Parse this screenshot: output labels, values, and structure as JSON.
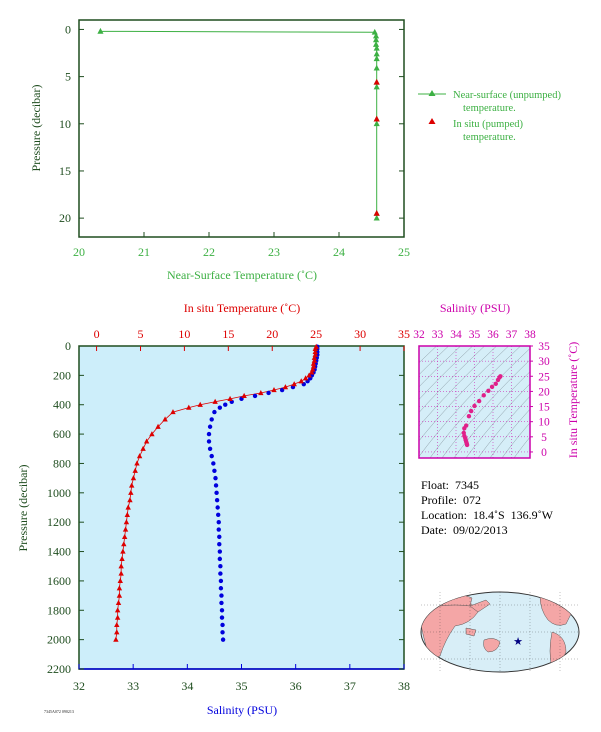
{
  "chart_data": [
    {
      "type": "scatter",
      "id": "near-surface",
      "xlabel": "Near-Surface Temperature (˚C)",
      "ylabel": "Pressure (decibar)",
      "xlim": [
        20,
        25
      ],
      "ylim": [
        22,
        -1
      ],
      "x_ticks": [
        "20",
        "21",
        "22",
        "23",
        "24",
        "25"
      ],
      "y_ticks": [
        "0",
        "5",
        "10",
        "15",
        "20"
      ],
      "legend_position": "right",
      "series": [
        {
          "name": "Near-surface (unpumped) temperature.",
          "color": "#3cb043",
          "marker": "triangle",
          "line": true,
          "points": [
            [
              20.33,
              0.2
            ],
            [
              24.55,
              0.3
            ],
            [
              24.57,
              0.7
            ],
            [
              24.57,
              1.1
            ],
            [
              24.57,
              1.6
            ],
            [
              24.58,
              2.0
            ],
            [
              24.58,
              2.6
            ],
            [
              24.58,
              3.1
            ],
            [
              24.58,
              4.1
            ],
            [
              24.58,
              5.6
            ],
            [
              24.58,
              6.1
            ],
            [
              24.58,
              9.5
            ],
            [
              24.58,
              10.0
            ],
            [
              24.58,
              19.5
            ],
            [
              24.58,
              20.0
            ]
          ]
        },
        {
          "name": "In situ (pumped) temperature.",
          "color": "#dd0000",
          "marker": "triangle",
          "line": false,
          "points": [
            [
              24.58,
              5.6
            ],
            [
              24.58,
              9.5
            ],
            [
              24.58,
              19.5
            ]
          ]
        }
      ]
    },
    {
      "type": "line",
      "id": "profile",
      "title_top": "In situ Temperature (˚C)",
      "xlabel": "Salinity (PSU)",
      "ylabel": "Pressure (decibar)",
      "temp_lim": [
        -2,
        35
      ],
      "sal_lim": [
        32,
        38
      ],
      "ylim": [
        2200,
        0
      ],
      "temp_ticks": [
        "0",
        "5",
        "10",
        "15",
        "20",
        "25",
        "30",
        "35"
      ],
      "sal_ticks": [
        "32",
        "33",
        "34",
        "35",
        "36",
        "37",
        "38"
      ],
      "y_ticks": [
        "0",
        "200",
        "400",
        "600",
        "800",
        "1000",
        "1200",
        "1400",
        "1600",
        "1800",
        "2000",
        "2200"
      ],
      "series": [
        {
          "name": "In situ Temperature",
          "color": "#dd0000",
          "marker": "triangle",
          "points": [
            [
              25.0,
              5
            ],
            [
              24.9,
              20
            ],
            [
              24.9,
              40
            ],
            [
              24.9,
              60
            ],
            [
              24.8,
              80
            ],
            [
              24.8,
              100
            ],
            [
              24.7,
              120
            ],
            [
              24.7,
              140
            ],
            [
              24.6,
              160
            ],
            [
              24.5,
              180
            ],
            [
              24.2,
              200
            ],
            [
              23.8,
              220
            ],
            [
              23.3,
              240
            ],
            [
              22.5,
              260
            ],
            [
              21.5,
              280
            ],
            [
              20.2,
              300
            ],
            [
              18.7,
              320
            ],
            [
              16.8,
              340
            ],
            [
              15.2,
              360
            ],
            [
              13.5,
              380
            ],
            [
              11.8,
              400
            ],
            [
              10.5,
              420
            ],
            [
              8.7,
              450
            ],
            [
              7.8,
              500
            ],
            [
              7.0,
              550
            ],
            [
              6.3,
              600
            ],
            [
              5.7,
              650
            ],
            [
              5.3,
              700
            ],
            [
              4.9,
              750
            ],
            [
              4.6,
              800
            ],
            [
              4.4,
              850
            ],
            [
              4.2,
              900
            ],
            [
              4.0,
              950
            ],
            [
              3.9,
              1000
            ],
            [
              3.8,
              1050
            ],
            [
              3.6,
              1100
            ],
            [
              3.5,
              1150
            ],
            [
              3.4,
              1200
            ],
            [
              3.3,
              1250
            ],
            [
              3.2,
              1300
            ],
            [
              3.1,
              1350
            ],
            [
              3.0,
              1400
            ],
            [
              2.9,
              1450
            ],
            [
              2.8,
              1500
            ],
            [
              2.8,
              1550
            ],
            [
              2.7,
              1600
            ],
            [
              2.6,
              1650
            ],
            [
              2.6,
              1700
            ],
            [
              2.5,
              1750
            ],
            [
              2.4,
              1800
            ],
            [
              2.4,
              1850
            ],
            [
              2.3,
              1900
            ],
            [
              2.3,
              1950
            ],
            [
              2.2,
              2000
            ]
          ]
        },
        {
          "name": "Salinity",
          "color": "#0000dd",
          "marker": "dot",
          "points": [
            [
              36.4,
              5
            ],
            [
              36.4,
              20
            ],
            [
              36.4,
              40
            ],
            [
              36.4,
              60
            ],
            [
              36.39,
              80
            ],
            [
              36.38,
              100
            ],
            [
              36.37,
              120
            ],
            [
              36.36,
              140
            ],
            [
              36.35,
              160
            ],
            [
              36.33,
              180
            ],
            [
              36.3,
              200
            ],
            [
              36.27,
              220
            ],
            [
              36.22,
              240
            ],
            [
              36.15,
              260
            ],
            [
              35.95,
              280
            ],
            [
              35.75,
              300
            ],
            [
              35.5,
              320
            ],
            [
              35.25,
              340
            ],
            [
              35.0,
              360
            ],
            [
              34.82,
              380
            ],
            [
              34.7,
              400
            ],
            [
              34.6,
              420
            ],
            [
              34.5,
              450
            ],
            [
              34.45,
              500
            ],
            [
              34.42,
              550
            ],
            [
              34.4,
              600
            ],
            [
              34.4,
              650
            ],
            [
              34.42,
              700
            ],
            [
              34.45,
              750
            ],
            [
              34.48,
              800
            ],
            [
              34.5,
              850
            ],
            [
              34.52,
              900
            ],
            [
              34.53,
              950
            ],
            [
              34.54,
              1000
            ],
            [
              34.55,
              1050
            ],
            [
              34.56,
              1100
            ],
            [
              34.57,
              1150
            ],
            [
              34.58,
              1200
            ],
            [
              34.58,
              1250
            ],
            [
              34.59,
              1300
            ],
            [
              34.59,
              1350
            ],
            [
              34.6,
              1400
            ],
            [
              34.6,
              1450
            ],
            [
              34.61,
              1500
            ],
            [
              34.61,
              1550
            ],
            [
              34.62,
              1600
            ],
            [
              34.62,
              1650
            ],
            [
              34.63,
              1700
            ],
            [
              34.63,
              1750
            ],
            [
              34.64,
              1800
            ],
            [
              34.64,
              1850
            ],
            [
              34.65,
              1900
            ],
            [
              34.65,
              1950
            ],
            [
              34.66,
              2000
            ]
          ]
        }
      ]
    },
    {
      "type": "scatter",
      "id": "ts-diagram",
      "title_top": "Salinity (PSU)",
      "ylabel_right": "In situ Temperature (˚C)",
      "xlim": [
        32,
        38
      ],
      "ylim": [
        -2,
        35
      ],
      "x_ticks": [
        "32",
        "33",
        "34",
        "35",
        "36",
        "37",
        "38"
      ],
      "y_ticks": [
        "0",
        "5",
        "10",
        "15",
        "20",
        "25",
        "30",
        "35"
      ],
      "color": "#e0208a",
      "points": [
        [
          34.6,
          2.3
        ],
        [
          34.58,
          2.8
        ],
        [
          34.55,
          3.4
        ],
        [
          34.52,
          4.0
        ],
        [
          34.5,
          4.6
        ],
        [
          34.45,
          5.3
        ],
        [
          34.42,
          6.3
        ],
        [
          34.45,
          7.8
        ],
        [
          34.55,
          8.7
        ],
        [
          34.7,
          11.8
        ],
        [
          34.82,
          13.5
        ],
        [
          35.0,
          15.2
        ],
        [
          35.25,
          16.8
        ],
        [
          35.5,
          18.7
        ],
        [
          35.75,
          20.2
        ],
        [
          35.95,
          21.5
        ],
        [
          36.15,
          22.5
        ],
        [
          36.27,
          23.8
        ],
        [
          36.35,
          24.6
        ],
        [
          36.4,
          25.0
        ]
      ]
    }
  ],
  "float_info": {
    "float_label": "Float:",
    "float": "7345",
    "profile_label": "Profile:",
    "profile": "072",
    "location_label": "Location:",
    "lat": "18.4˚S",
    "lon": "136.9˚W",
    "date_label": "Date:",
    "date": "09/02/2013"
  },
  "footer_id": "7345A072 090213",
  "map": {
    "land_color": "#f4a6a6",
    "ocean_color": "#d8eef7",
    "marker": "star",
    "marker_color": "#000080"
  },
  "colors": {
    "green": "#3cb043",
    "axis_green": "#1f4d1f",
    "red": "#dd0000",
    "blue": "#0000dd",
    "magenta": "#cc00aa",
    "profile_bg": "#cdeefa"
  }
}
